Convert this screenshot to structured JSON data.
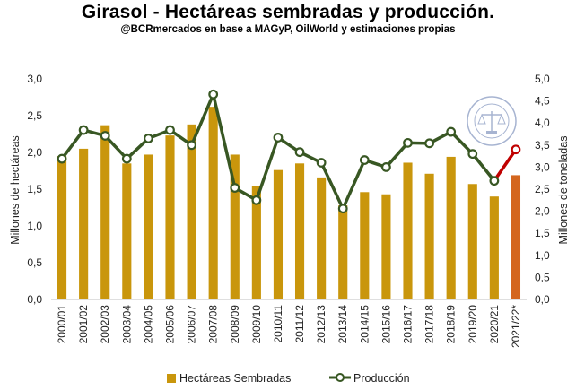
{
  "title": "Girasol - Hectáreas sembradas y producción.",
  "subtitle": "@BCRmercados en base a MAGyP, OilWorld y estimaciones propias",
  "seal_text": "BOLSA DE COMERCIO DE ROSARIO",
  "colors": {
    "bars": "#c9960c",
    "bar_estimate": "#d4661e",
    "line": "#385723",
    "line_estimate": "#c00000",
    "marker_fill": "#ffffff"
  },
  "chart_data": {
    "type": "bar",
    "title": "Girasol - Hectáreas sembradas y producción.",
    "ylabel": "Millones de hectáreas",
    "y2label": "Millones de toneladas",
    "ylim": [
      0,
      3.0
    ],
    "y2lim": [
      0,
      5.0
    ],
    "yticks": [
      "0,0",
      "0,5",
      "1,0",
      "1,5",
      "2,0",
      "2,5",
      "3,0"
    ],
    "y2ticks": [
      "0,0",
      "0,5",
      "1,0",
      "1,5",
      "2,0",
      "2,5",
      "3,0",
      "3,5",
      "4,0",
      "4,5",
      "5,0"
    ],
    "grid": false,
    "legend_position": "bottom",
    "categories": [
      "2000/01",
      "2001/02",
      "2002/03",
      "2003/04",
      "2004/05",
      "2005/06",
      "2006/07",
      "2007/08",
      "2008/09",
      "2009/10",
      "2010/11",
      "2011/12",
      "2012/13",
      "2013/14",
      "2014/15",
      "2015/16",
      "2016/17",
      "2017/18",
      "2018/19",
      "2019/20",
      "2020/21",
      "2021/22*"
    ],
    "series": [
      {
        "name": "Hectáreas Sembradas",
        "type": "bar",
        "axis": "left",
        "values": [
          1.95,
          2.05,
          2.37,
          1.85,
          1.97,
          2.23,
          2.38,
          2.62,
          1.97,
          1.54,
          1.76,
          1.85,
          1.66,
          1.28,
          1.46,
          1.43,
          1.86,
          1.71,
          1.94,
          1.57,
          1.4,
          1.69
        ]
      },
      {
        "name": "Producción",
        "type": "line",
        "axis": "right",
        "values": [
          3.19,
          3.84,
          3.71,
          3.19,
          3.65,
          3.84,
          3.5,
          4.65,
          2.53,
          2.25,
          3.67,
          3.34,
          3.1,
          2.06,
          3.16,
          3.0,
          3.55,
          3.54,
          3.8,
          3.3,
          2.69,
          3.4
        ]
      }
    ]
  }
}
